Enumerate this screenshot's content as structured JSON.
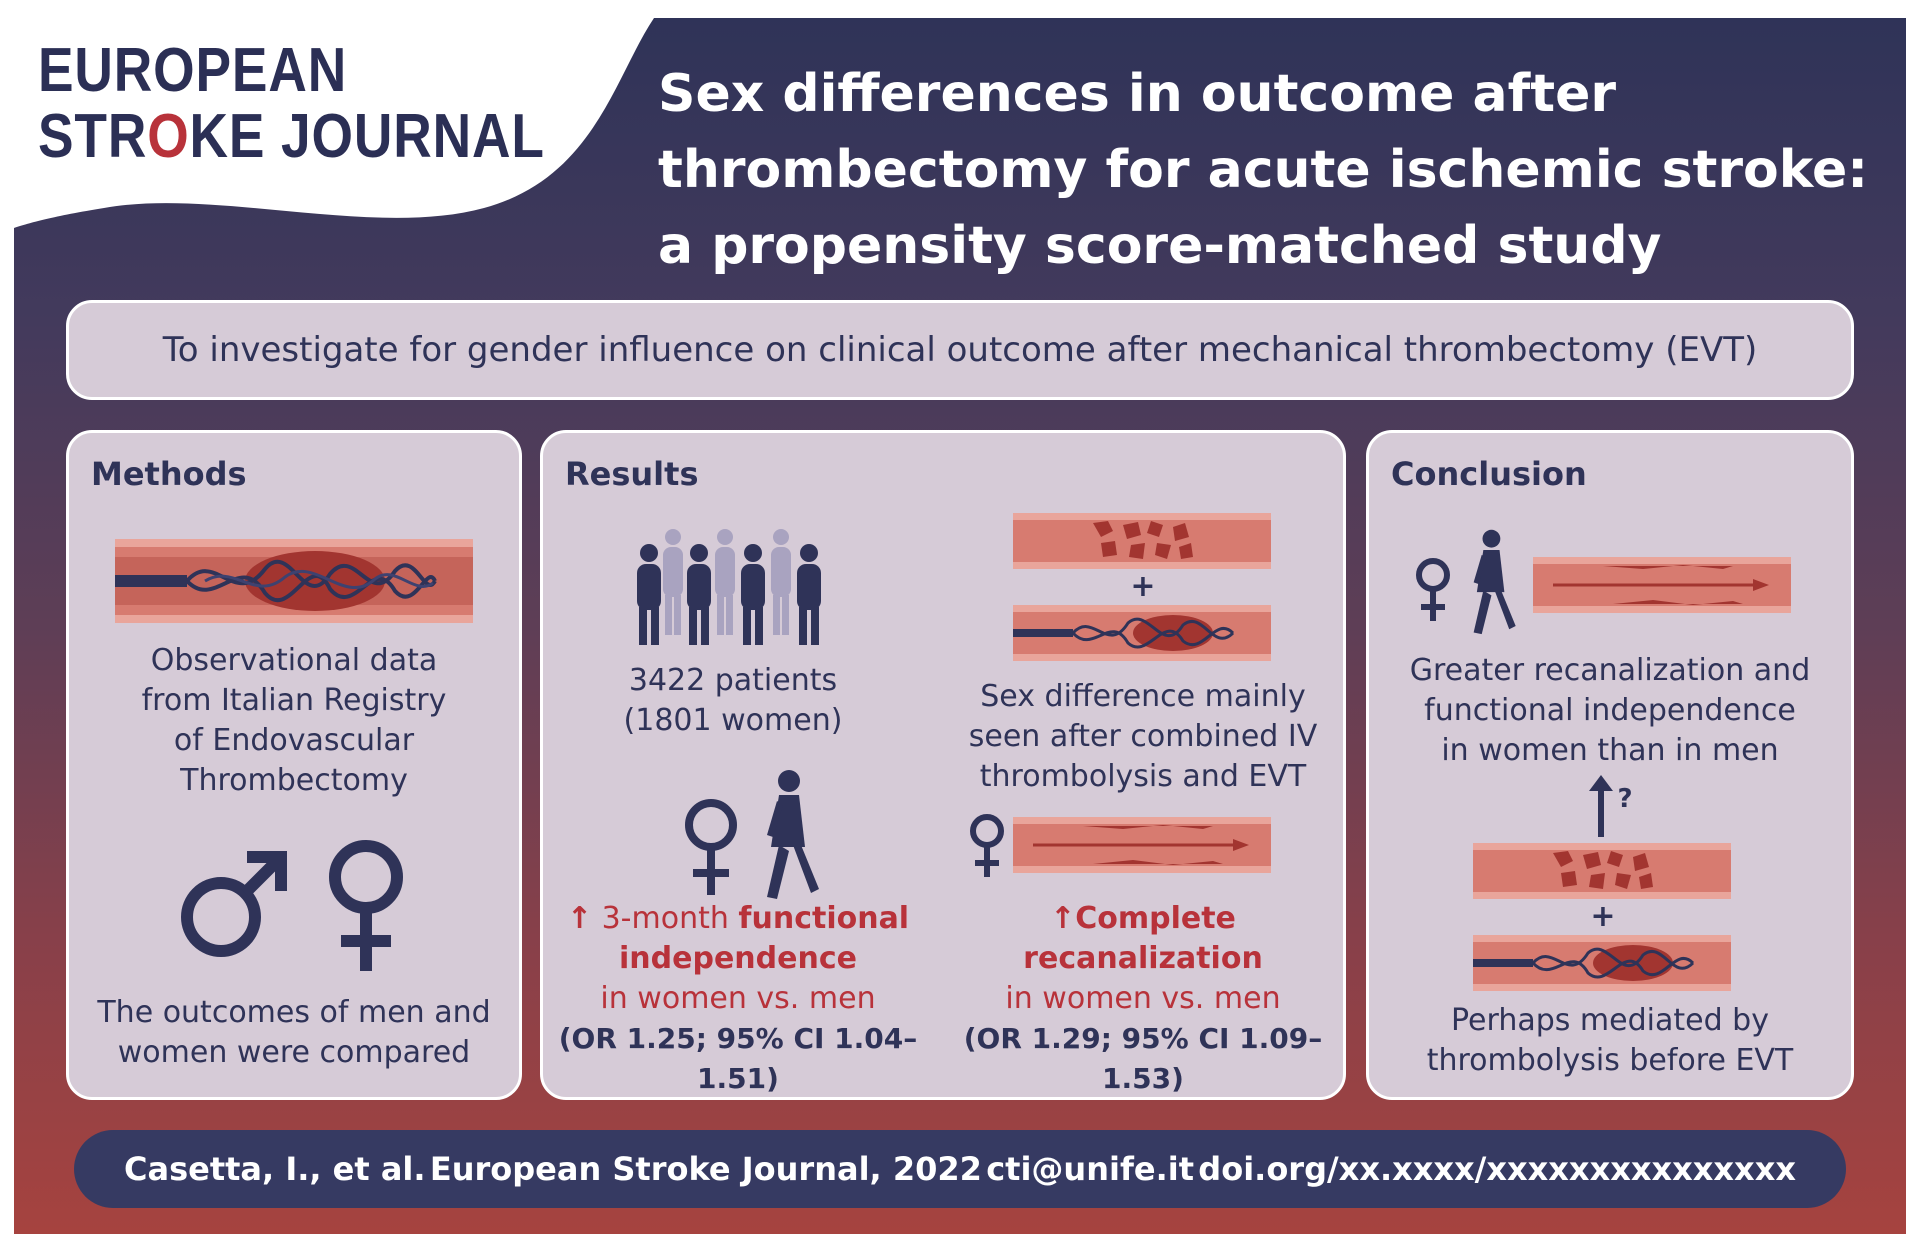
{
  "logo": {
    "line1": "EUROPEAN",
    "line2_a": "STR",
    "line2_o": "O",
    "line2_b": "KE JOURNAL"
  },
  "title": {
    "line1": "Sex differences in outcome after",
    "line2": "thrombectomy for acute ischemic stroke:",
    "line3": "a propensity score-matched study"
  },
  "aim": "To investigate for gender influence on clinical outcome after mechanical thrombectomy (EVT)",
  "methods": {
    "title": "Methods",
    "data_lines": [
      "Observational data",
      "from Italian Registry",
      "of Endovascular",
      "Thrombectomy"
    ],
    "compare_lines": [
      "The outcomes of men and",
      "women were compared"
    ]
  },
  "results": {
    "title": "Results",
    "patients_line1": "3422 patients",
    "patients_line2": "(1801 women)",
    "sexdiff_lines": [
      "Sex difference mainly",
      "seen after combined IV",
      "thrombolysis and EVT"
    ],
    "plus": "+",
    "arrow_up": "↑",
    "functional": {
      "prefix": "3-month ",
      "bold1": "functional",
      "bold2": "independence",
      "line3": "in women vs. men",
      "stat": "(OR 1.25; 95% CI 1.04–1.51)"
    },
    "recanalization": {
      "bold1": "Complete",
      "bold2": "recanalization",
      "line3": "in women vs. men",
      "stat": "(OR 1.29; 95% CI 1.09–1.53)"
    }
  },
  "conclusion": {
    "title": "Conclusion",
    "greater_lines": [
      "Greater recanalization and",
      "functional independence",
      "in women than in men"
    ],
    "question": "?",
    "plus": "+",
    "perhaps_lines": [
      "Perhaps mediated by",
      "thrombolysis before EVT"
    ]
  },
  "footer": {
    "authors": "Casetta, I., et al.",
    "journal": "European Stroke Journal, 2022",
    "email": "cti@unife.it",
    "doi": "doi.org/xx.xxxx/xxxxxxxxxxxxxxx"
  },
  "colors": {
    "navy": "#2f3358",
    "red": "#b8323a",
    "panel": "#d6cbd7",
    "footer": "#363a62"
  },
  "icons": [
    "stent-retriever-icon",
    "male-symbol-icon",
    "female-symbol-icon",
    "people-group-icon",
    "walking-woman-icon",
    "clot-vessel-icon",
    "recanalized-vessel-icon",
    "up-arrow-icon"
  ]
}
